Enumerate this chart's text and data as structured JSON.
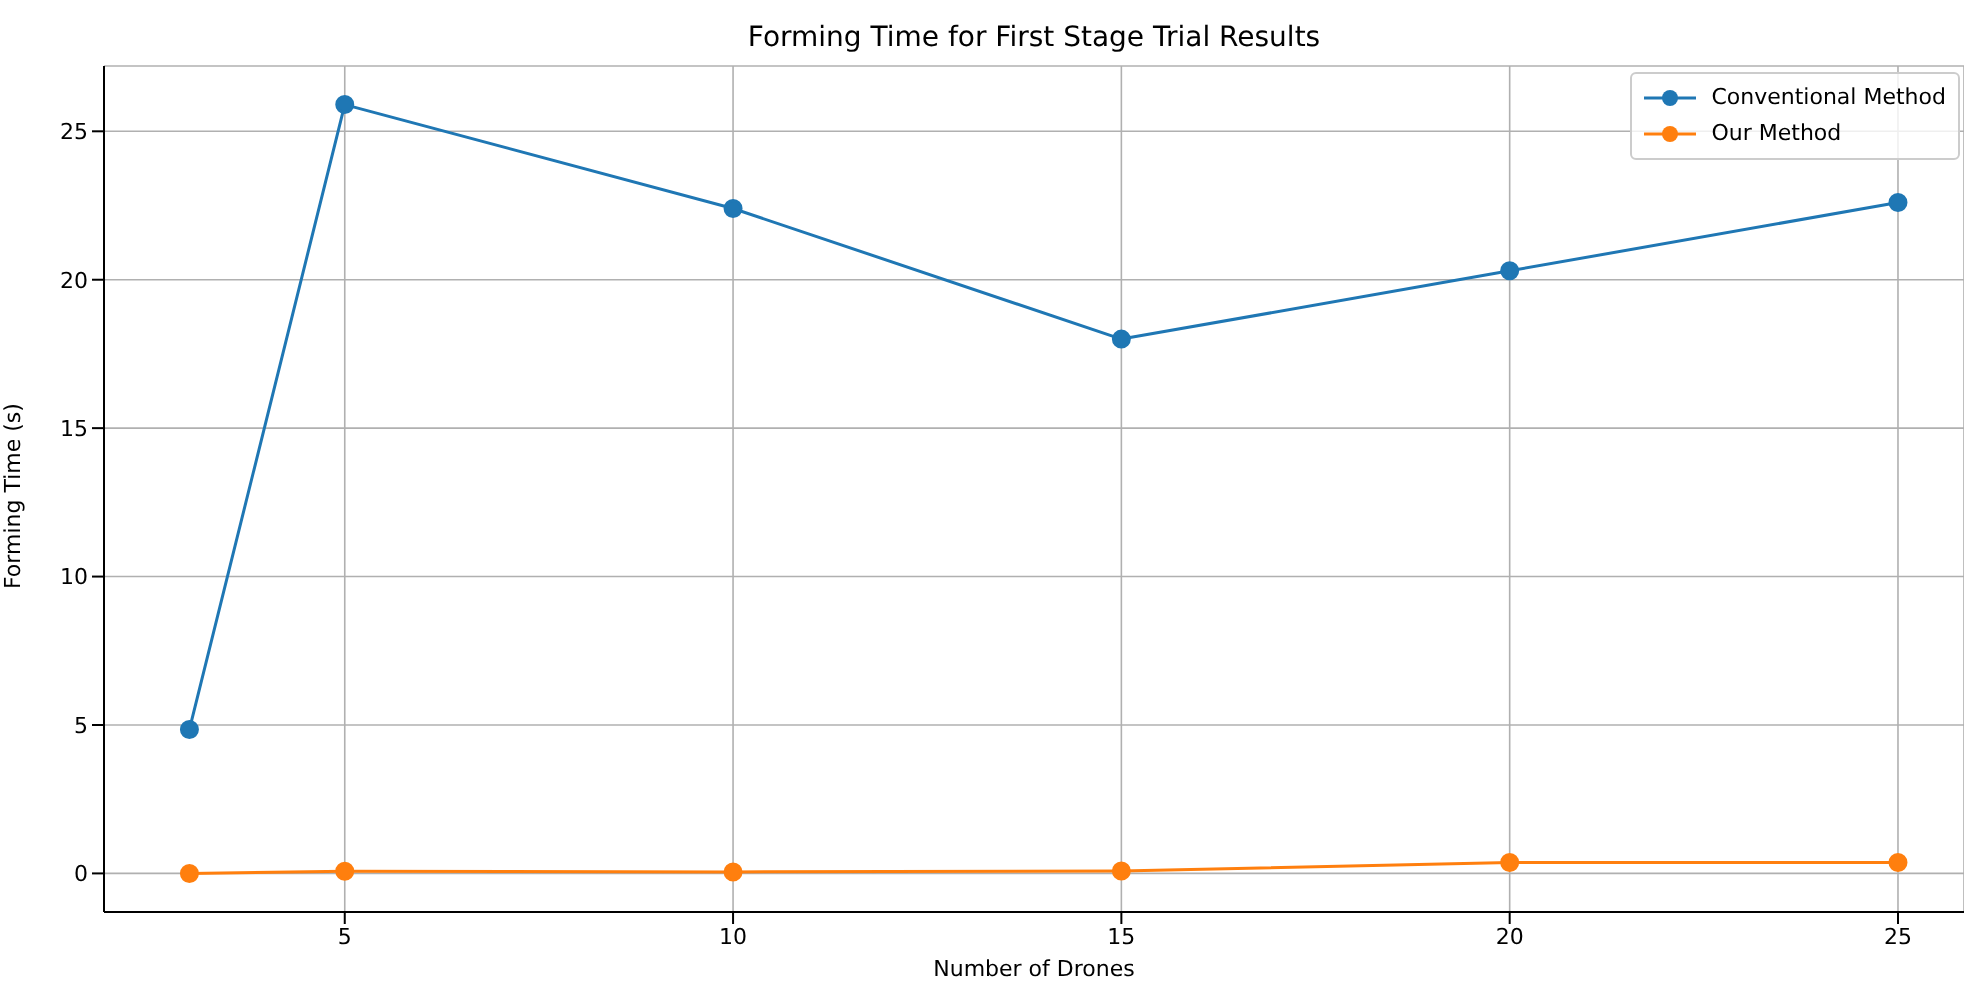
{
  "chart_data": {
    "type": "line",
    "title": "Forming Time for First Stage Trial Results",
    "xlabel": "Number of Drones",
    "ylabel": "Forming Time (s)",
    "x": [
      3,
      5,
      10,
      15,
      20,
      25
    ],
    "series": [
      {
        "name": "Conventional Method",
        "color": "#1f77b4",
        "values": [
          4.85,
          25.9,
          22.4,
          18.0,
          20.3,
          22.6
        ]
      },
      {
        "name": "Our Method",
        "color": "#ff7f0e",
        "values": [
          0.0,
          0.07,
          0.05,
          0.08,
          0.37,
          0.37
        ]
      }
    ],
    "xlim": [
      1.9,
      25.85
    ],
    "xticks": [
      5,
      10,
      15,
      20,
      25
    ],
    "ylim": [
      -1.3,
      27.2
    ],
    "yticks": [
      0,
      5,
      10,
      15,
      20,
      25
    ],
    "grid": true,
    "legend": "top right",
    "marker": "circle",
    "line_style": "solid"
  }
}
